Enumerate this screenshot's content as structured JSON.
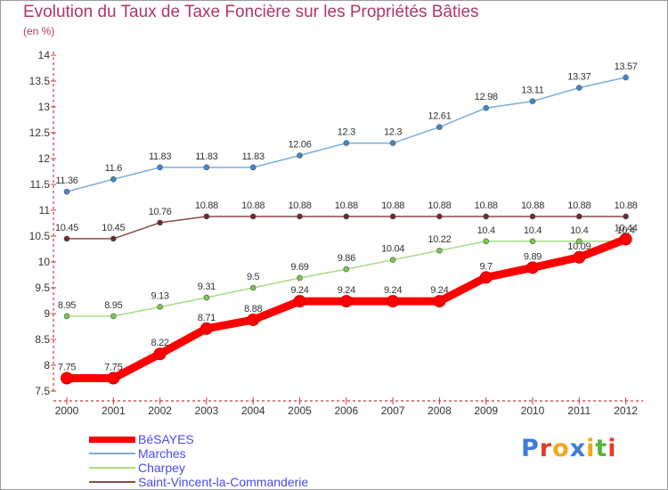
{
  "header": {
    "title": "Evolution du Taux de Taxe Foncière sur les Propriétés Bâties",
    "unit": "(en %)"
  },
  "brand": {
    "letters": [
      "P",
      "r",
      "o",
      "x",
      "i",
      "t",
      "i"
    ],
    "colors": [
      "#3d7ed6",
      "#e8382a",
      "#f0a81c",
      "#3d7ed6",
      "#f0a81c",
      "#57b43b",
      "#e8382a"
    ]
  },
  "chart_data": {
    "type": "line",
    "title": "Evolution du Taux de Taxe Foncière sur les Propriétés Bâties",
    "ylabel": "(en %)",
    "xlabel": "",
    "categories": [
      "2000",
      "2001",
      "2002",
      "2003",
      "2004",
      "2005",
      "2006",
      "2007",
      "2008",
      "2009",
      "2010",
      "2011",
      "2012"
    ],
    "ylim": [
      7.5,
      14
    ],
    "yticks": [
      "7.5",
      "8",
      "8.5",
      "9",
      "9.5",
      "10",
      "10.5",
      "11",
      "11.5",
      "12",
      "12.5",
      "13",
      "13.5",
      "14"
    ],
    "grid": false,
    "legend_position": "bottom-left",
    "series": [
      {
        "name": "Marches",
        "color": "#7aaed8",
        "marker": "#3f88cc",
        "values": [
          11.36,
          11.6,
          11.83,
          11.83,
          11.83,
          12.06,
          12.3,
          12.3,
          12.61,
          12.98,
          13.11,
          13.37,
          13.57
        ],
        "labels": [
          "11.36",
          "11.6",
          "11.83",
          "11.83",
          "11.83",
          "12.06",
          "12.3",
          "12.3",
          "12.61",
          "12.98",
          "13.11",
          "13.37",
          "13.57"
        ]
      },
      {
        "name": "Saint-Vincent-la-Commanderie",
        "color": "#8a4a4a",
        "marker": "#6b2c2c",
        "values": [
          10.45,
          10.45,
          10.76,
          10.88,
          10.88,
          10.88,
          10.88,
          10.88,
          10.88,
          10.88,
          10.88,
          10.88,
          10.88
        ],
        "labels": [
          "10.45",
          "10.45",
          "10.76",
          "10.88",
          "10.88",
          "10.88",
          "10.88",
          "10.88",
          "10.88",
          "10.88",
          "10.88",
          "10.88",
          "10.88"
        ]
      },
      {
        "name": "Charpey",
        "color": "#a8dc84",
        "marker": "#7ac94a",
        "values": [
          8.95,
          8.95,
          9.13,
          9.31,
          9.5,
          9.69,
          9.86,
          10.04,
          10.22,
          10.4,
          10.4,
          10.4,
          10.4
        ],
        "labels": [
          "8.95",
          "8.95",
          "9.13",
          "9.31",
          "9.5",
          "9.69",
          "9.86",
          "10.04",
          "10.22",
          "10.4",
          "10.4",
          "10.4",
          "10.4"
        ]
      },
      {
        "name": "BéSAYES",
        "color": "#ff0000",
        "marker": "#ff0000",
        "values": [
          7.75,
          7.75,
          8.22,
          8.71,
          8.88,
          9.24,
          9.24,
          9.24,
          9.24,
          9.7,
          9.89,
          10.09,
          10.44
        ],
        "labels": [
          "7.75",
          "7.75",
          "8.22",
          "8.71",
          "8.88",
          "9.24",
          "9.24",
          "9.24",
          "9.24",
          "9.7",
          "9.89",
          "10.09",
          "10.44"
        ]
      }
    ],
    "legend_order": [
      "BéSAYES",
      "Marches",
      "Charpey",
      "Saint-Vincent-la-Commanderie"
    ]
  }
}
